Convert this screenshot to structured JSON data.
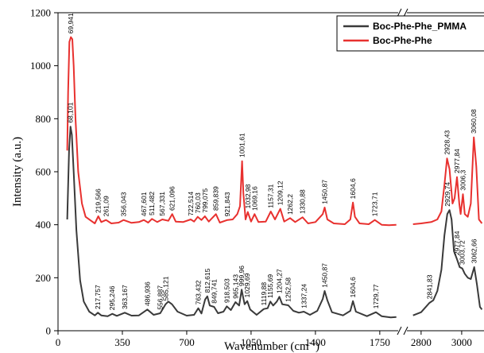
{
  "chart_data": {
    "type": "line",
    "xlabel": "Wavenumber (cm",
    "xlabel_sup": "-1",
    "xlabel_close": ")",
    "ylabel": "Intensity (a.u.)",
    "ylim": [
      0,
      1200
    ],
    "y_ticks": [
      "0",
      "200",
      "400",
      "600",
      "800",
      "1000",
      "1200"
    ],
    "x_segments": [
      {
        "range": [
          0,
          1850
        ],
        "ticks": [
          "0",
          "350",
          "700",
          "1050",
          "1400",
          "1750"
        ]
      },
      {
        "range": [
          2730,
          3110
        ],
        "ticks": [
          "2800",
          "3000"
        ]
      }
    ],
    "axis_break": true,
    "legend_position": "top-right",
    "series": [
      {
        "name": "Boc-Phe-Phe_PMMA",
        "color": "#3a3a3a",
        "points": [
          [
            50,
            420
          ],
          [
            60,
            680
          ],
          [
            68,
            770
          ],
          [
            75,
            740
          ],
          [
            85,
            600
          ],
          [
            100,
            380
          ],
          [
            120,
            190
          ],
          [
            140,
            110
          ],
          [
            170,
            72
          ],
          [
            200,
            58
          ],
          [
            217,
            68
          ],
          [
            235,
            58
          ],
          [
            270,
            55
          ],
          [
            295,
            64
          ],
          [
            320,
            56
          ],
          [
            363,
            68
          ],
          [
            400,
            57
          ],
          [
            440,
            58
          ],
          [
            486,
            80
          ],
          [
            520,
            60
          ],
          [
            556,
            66
          ],
          [
            585,
            100
          ],
          [
            600,
            110
          ],
          [
            620,
            100
          ],
          [
            650,
            72
          ],
          [
            700,
            57
          ],
          [
            740,
            60
          ],
          [
            763,
            85
          ],
          [
            780,
            65
          ],
          [
            800,
            118
          ],
          [
            812,
            130
          ],
          [
            825,
            95
          ],
          [
            849,
            90
          ],
          [
            870,
            66
          ],
          [
            900,
            72
          ],
          [
            918,
            92
          ],
          [
            940,
            78
          ],
          [
            965,
            108
          ],
          [
            985,
            95
          ],
          [
            999,
            155
          ],
          [
            1006,
            130
          ],
          [
            1015,
            100
          ],
          [
            1029,
            112
          ],
          [
            1045,
            80
          ],
          [
            1080,
            60
          ],
          [
            1119,
            82
          ],
          [
            1140,
            85
          ],
          [
            1155,
            110
          ],
          [
            1170,
            95
          ],
          [
            1190,
            110
          ],
          [
            1204,
            128
          ],
          [
            1220,
            100
          ],
          [
            1252,
            96
          ],
          [
            1280,
            75
          ],
          [
            1310,
            68
          ],
          [
            1337,
            72
          ],
          [
            1370,
            60
          ],
          [
            1410,
            75
          ],
          [
            1440,
            120
          ],
          [
            1450,
            150
          ],
          [
            1465,
            115
          ],
          [
            1490,
            70
          ],
          [
            1550,
            58
          ],
          [
            1590,
            75
          ],
          [
            1604,
            112
          ],
          [
            1620,
            72
          ],
          [
            1680,
            55
          ],
          [
            1729,
            70
          ],
          [
            1760,
            55
          ],
          [
            1810,
            50
          ],
          [
            1840,
            52
          ],
          [
            2760,
            58
          ],
          [
            2800,
            70
          ],
          [
            2841,
            105
          ],
          [
            2860,
            115
          ],
          [
            2880,
            150
          ],
          [
            2900,
            230
          ],
          [
            2915,
            360
          ],
          [
            2929,
            440
          ],
          [
            2940,
            455
          ],
          [
            2950,
            420
          ],
          [
            2962,
            300
          ],
          [
            2977,
            270
          ],
          [
            2990,
            240
          ],
          [
            3003,
            235
          ],
          [
            3015,
            215
          ],
          [
            3030,
            200
          ],
          [
            3045,
            195
          ],
          [
            3062,
            240
          ],
          [
            3075,
            175
          ],
          [
            3090,
            90
          ],
          [
            3100,
            80
          ]
        ]
      },
      {
        "name": "Boc-Phe-Phe",
        "color": "#e8312f",
        "points": [
          [
            50,
            680
          ],
          [
            55,
            900
          ],
          [
            62,
            1090
          ],
          [
            70,
            1108
          ],
          [
            78,
            1100
          ],
          [
            85,
            1000
          ],
          [
            95,
            800
          ],
          [
            110,
            600
          ],
          [
            130,
            480
          ],
          [
            150,
            430
          ],
          [
            180,
            415
          ],
          [
            200,
            405
          ],
          [
            219,
            432
          ],
          [
            235,
            410
          ],
          [
            261,
            418
          ],
          [
            290,
            405
          ],
          [
            330,
            408
          ],
          [
            356,
            418
          ],
          [
            400,
            407
          ],
          [
            440,
            410
          ],
          [
            467,
            418
          ],
          [
            490,
            408
          ],
          [
            511,
            422
          ],
          [
            540,
            410
          ],
          [
            567,
            420
          ],
          [
            600,
            415
          ],
          [
            621,
            440
          ],
          [
            640,
            412
          ],
          [
            680,
            410
          ],
          [
            722,
            420
          ],
          [
            740,
            412
          ],
          [
            760,
            430
          ],
          [
            780,
            418
          ],
          [
            799,
            432
          ],
          [
            820,
            412
          ],
          [
            859,
            440
          ],
          [
            880,
            408
          ],
          [
            921,
            418
          ],
          [
            950,
            420
          ],
          [
            975,
            440
          ],
          [
            990,
            470
          ],
          [
            1001,
            640
          ],
          [
            1008,
            520
          ],
          [
            1020,
            420
          ],
          [
            1032,
            448
          ],
          [
            1050,
            412
          ],
          [
            1069,
            440
          ],
          [
            1090,
            410
          ],
          [
            1130,
            412
          ],
          [
            1157,
            450
          ],
          [
            1180,
            420
          ],
          [
            1209,
            460
          ],
          [
            1230,
            412
          ],
          [
            1262,
            425
          ],
          [
            1290,
            410
          ],
          [
            1330,
            428
          ],
          [
            1360,
            405
          ],
          [
            1400,
            410
          ],
          [
            1440,
            440
          ],
          [
            1450,
            465
          ],
          [
            1465,
            420
          ],
          [
            1500,
            405
          ],
          [
            1560,
            402
          ],
          [
            1590,
            420
          ],
          [
            1604,
            484
          ],
          [
            1615,
            430
          ],
          [
            1640,
            405
          ],
          [
            1690,
            402
          ],
          [
            1723,
            418
          ],
          [
            1760,
            400
          ],
          [
            1800,
            398
          ],
          [
            1840,
            400
          ],
          [
            2760,
            402
          ],
          [
            2800,
            405
          ],
          [
            2850,
            410
          ],
          [
            2880,
            420
          ],
          [
            2900,
            450
          ],
          [
            2915,
            550
          ],
          [
            2928,
            650
          ],
          [
            2940,
            610
          ],
          [
            2955,
            480
          ],
          [
            2965,
            500
          ],
          [
            2977,
            580
          ],
          [
            2988,
            480
          ],
          [
            2995,
            440
          ],
          [
            3006,
            515
          ],
          [
            3015,
            440
          ],
          [
            3030,
            430
          ],
          [
            3045,
            480
          ],
          [
            3060,
            730
          ],
          [
            3072,
            620
          ],
          [
            3085,
            420
          ],
          [
            3100,
            405
          ]
        ]
      }
    ],
    "peak_labels": [
      {
        "text": "69,941",
        "x": 69,
        "y": 1112,
        "series": "Boc-Phe-Phe"
      },
      {
        "text": "219,566",
        "x": 219,
        "y": 435,
        "series": "Boc-Phe-Phe"
      },
      {
        "text": "261,09",
        "x": 261,
        "y": 422,
        "series": "Boc-Phe-Phe"
      },
      {
        "text": "356,043",
        "x": 356,
        "y": 422,
        "series": "Boc-Phe-Phe"
      },
      {
        "text": "467,601",
        "x": 467,
        "y": 422,
        "series": "Boc-Phe-Phe"
      },
      {
        "text": "511,482",
        "x": 511,
        "y": 426,
        "series": "Boc-Phe-Phe"
      },
      {
        "text": "567,331",
        "x": 567,
        "y": 424,
        "series": "Boc-Phe-Phe"
      },
      {
        "text": "621,096",
        "x": 621,
        "y": 444,
        "series": "Boc-Phe-Phe"
      },
      {
        "text": "722,514",
        "x": 722,
        "y": 424,
        "series": "Boc-Phe-Phe"
      },
      {
        "text": "760,03",
        "x": 760,
        "y": 434,
        "series": "Boc-Phe-Phe"
      },
      {
        "text": "799,075",
        "x": 799,
        "y": 436,
        "series": "Boc-Phe-Phe"
      },
      {
        "text": "859,839",
        "x": 859,
        "y": 444,
        "series": "Boc-Phe-Phe"
      },
      {
        "text": "921,843",
        "x": 921,
        "y": 422,
        "series": "Boc-Phe-Phe"
      },
      {
        "text": "1001,61",
        "x": 1001,
        "y": 645,
        "series": "Boc-Phe-Phe"
      },
      {
        "text": "1032,98",
        "x": 1032,
        "y": 452,
        "series": "Boc-Phe-Phe"
      },
      {
        "text": "1069,16",
        "x": 1069,
        "y": 444,
        "series": "Boc-Phe-Phe"
      },
      {
        "text": "1157,31",
        "x": 1157,
        "y": 454,
        "series": "Boc-Phe-Phe"
      },
      {
        "text": "1209,12",
        "x": 1209,
        "y": 464,
        "series": "Boc-Phe-Phe"
      },
      {
        "text": "1262,2",
        "x": 1262,
        "y": 429,
        "series": "Boc-Phe-Phe"
      },
      {
        "text": "1330,88",
        "x": 1330,
        "y": 432,
        "series": "Boc-Phe-Phe"
      },
      {
        "text": "1450,87",
        "x": 1450,
        "y": 469,
        "series": "Boc-Phe-Phe"
      },
      {
        "text": "1604,6",
        "x": 1604,
        "y": 488,
        "series": "Boc-Phe-Phe"
      },
      {
        "text": "1723,71",
        "x": 1723,
        "y": 422,
        "series": "Boc-Phe-Phe"
      },
      {
        "text": "68,101",
        "x": 68,
        "y": 775,
        "series": "Boc-Phe-Phe_PMMA"
      },
      {
        "text": "217,757",
        "x": 217,
        "y": 72,
        "series": "Boc-Phe-Phe_PMMA"
      },
      {
        "text": "295,246",
        "x": 295,
        "y": 68,
        "series": "Boc-Phe-Phe_PMMA"
      },
      {
        "text": "363,167",
        "x": 363,
        "y": 72,
        "series": "Boc-Phe-Phe_PMMA"
      },
      {
        "text": "486,936",
        "x": 486,
        "y": 84,
        "series": "Boc-Phe-Phe_PMMA"
      },
      {
        "text": "556,887",
        "x": 556,
        "y": 70,
        "series": "Boc-Phe-Phe_PMMA"
      },
      {
        "text": "585,121",
        "x": 585,
        "y": 104,
        "series": "Boc-Phe-Phe_PMMA"
      },
      {
        "text": "763,432",
        "x": 763,
        "y": 89,
        "series": "Boc-Phe-Phe_PMMA"
      },
      {
        "text": "812,615",
        "x": 812,
        "y": 134,
        "series": "Boc-Phe-Phe_PMMA"
      },
      {
        "text": "849,741",
        "x": 849,
        "y": 94,
        "series": "Boc-Phe-Phe_PMMA"
      },
      {
        "text": "918,503",
        "x": 918,
        "y": 96,
        "series": "Boc-Phe-Phe_PMMA"
      },
      {
        "text": "965,143",
        "x": 965,
        "y": 112,
        "series": "Boc-Phe-Phe_PMMA"
      },
      {
        "text": "999,96",
        "x": 999,
        "y": 159,
        "series": "Boc-Phe-Phe_PMMA"
      },
      {
        "text": "1029,69",
        "x": 1029,
        "y": 116,
        "series": "Boc-Phe-Phe_PMMA"
      },
      {
        "text": "1119,88",
        "x": 1119,
        "y": 86,
        "series": "Boc-Phe-Phe_PMMA"
      },
      {
        "text": "1155,69",
        "x": 1155,
        "y": 114,
        "series": "Boc-Phe-Phe_PMMA"
      },
      {
        "text": "1204,27",
        "x": 1204,
        "y": 132,
        "series": "Boc-Phe-Phe_PMMA"
      },
      {
        "text": "1252,58",
        "x": 1252,
        "y": 100,
        "series": "Boc-Phe-Phe_PMMA"
      },
      {
        "text": "1337,24",
        "x": 1337,
        "y": 76,
        "series": "Boc-Phe-Phe_PMMA"
      },
      {
        "text": "1450,87",
        "x": 1450,
        "y": 154,
        "series": "Boc-Phe-Phe_PMMA"
      },
      {
        "text": "1604,6",
        "x": 1604,
        "y": 116,
        "series": "Boc-Phe-Phe_PMMA"
      },
      {
        "text": "1729,77",
        "x": 1729,
        "y": 74,
        "series": "Boc-Phe-Phe_PMMA"
      },
      {
        "text": "2928,43",
        "x": 2928,
        "y": 655,
        "series": "Boc-Phe-Phe"
      },
      {
        "text": "2977,84",
        "x": 2977,
        "y": 585,
        "series": "Boc-Phe-Phe"
      },
      {
        "text": "3006,3",
        "x": 3006,
        "y": 520,
        "series": "Boc-Phe-Phe"
      },
      {
        "text": "3060,08",
        "x": 3060,
        "y": 735,
        "series": "Boc-Phe-Phe"
      },
      {
        "text": "2841,83",
        "x": 2841,
        "y": 110,
        "series": "Boc-Phe-Phe_PMMA"
      },
      {
        "text": "2929,74",
        "x": 2929,
        "y": 460,
        "series": "Boc-Phe-Phe_PMMA"
      },
      {
        "text": "2977,84",
        "x": 2977,
        "y": 275,
        "series": "Boc-Phe-Phe_PMMA"
      },
      {
        "text": "3003,72",
        "x": 3003,
        "y": 240,
        "series": "Boc-Phe-Phe_PMMA"
      },
      {
        "text": "3062,66",
        "x": 3062,
        "y": 245,
        "series": "Boc-Phe-Phe_PMMA"
      }
    ]
  }
}
